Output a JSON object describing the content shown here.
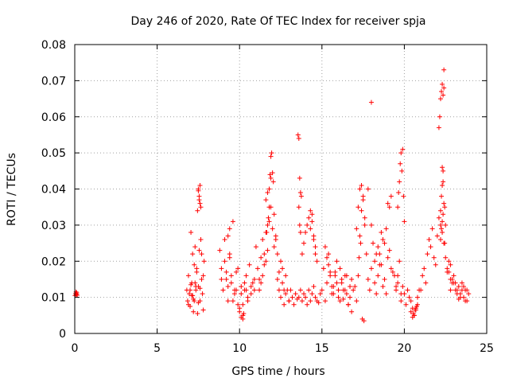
{
  "chart_data": {
    "type": "scatter",
    "title": "Day 246 of 2020, Rate Of TEC Index for receiver spja",
    "xlabel": "GPS time / hours",
    "ylabel": "ROTI / TECUs",
    "xlim": [
      0,
      25
    ],
    "ylim": [
      0,
      0.08
    ],
    "xticks": [
      0,
      5,
      10,
      15,
      20,
      25
    ],
    "yticks": [
      0,
      0.01,
      0.02,
      0.03,
      0.04,
      0.05,
      0.06,
      0.07,
      0.08
    ],
    "xtick_labels": [
      "0",
      "5",
      "10",
      "15",
      "20",
      "25"
    ],
    "ytick_labels": [
      "0",
      "0.01",
      "0.02",
      "0.03",
      "0.04",
      "0.05",
      "0.06",
      "0.07",
      "0.08"
    ],
    "grid": true,
    "marker": "+",
    "marker_color": "#ff0000",
    "series": [
      {
        "x": [
          0.02,
          0.05,
          0.08,
          0.1,
          0.12,
          0.15,
          6.8,
          6.85,
          6.9,
          6.95,
          7.0,
          7.05,
          7.1,
          7.15,
          7.2,
          7.25,
          7.3,
          7.35,
          7.4,
          7.45,
          7.5,
          7.55,
          7.6,
          7.65,
          7.7,
          7.75,
          7.8,
          7.85,
          6.9,
          7.0,
          7.1,
          7.2,
          7.3,
          7.4,
          7.5,
          7.6,
          7.7,
          7.8,
          7.05,
          7.15,
          7.25,
          7.35,
          7.45,
          7.5,
          7.55,
          7.6,
          7.5,
          7.55,
          7.6,
          7.65,
          8.8,
          8.9,
          9.0,
          9.1,
          9.2,
          9.3,
          9.4,
          9.5,
          9.6,
          9.7,
          9.8,
          9.9,
          10.0,
          10.1,
          10.2,
          10.3,
          10.4,
          10.5,
          10.6,
          10.7,
          10.8,
          10.9,
          8.9,
          9.1,
          9.3,
          9.5,
          9.7,
          9.9,
          10.1,
          10.3,
          10.5,
          10.7,
          10.9,
          9.2,
          9.4,
          9.6,
          9.8,
          10.0,
          10.2,
          10.4,
          9.3,
          9.4,
          10.1,
          10.2,
          10.25,
          11.0,
          11.1,
          11.2,
          11.3,
          11.4,
          11.5,
          11.6,
          11.7,
          11.8,
          11.9,
          12.0,
          12.1,
          12.2,
          12.3,
          12.4,
          12.5,
          12.6,
          12.7,
          12.8,
          12.9,
          11.6,
          11.7,
          11.8,
          11.9,
          11.85,
          11.9,
          11.95,
          12.0,
          12.05,
          11.8,
          11.75,
          11.7,
          11.65,
          11.2,
          11.4,
          11.6,
          12.2,
          12.4,
          12.6,
          12.8,
          13.0,
          11.3,
          11.5,
          12.1,
          12.3,
          12.5,
          12.7,
          13.0,
          13.1,
          13.2,
          13.3,
          13.4,
          13.5,
          13.6,
          13.7,
          13.8,
          13.9,
          14.0,
          14.1,
          14.2,
          14.3,
          14.4,
          14.5,
          14.6,
          14.7,
          14.8,
          14.9,
          13.55,
          13.6,
          13.65,
          13.7,
          13.75,
          13.6,
          13.65,
          13.7,
          13.8,
          13.9,
          14.0,
          14.1,
          14.2,
          14.3,
          14.4,
          14.5,
          14.6,
          14.7,
          14.3,
          14.4,
          14.5,
          14.6,
          15.0,
          15.1,
          15.2,
          15.3,
          15.4,
          15.5,
          15.6,
          15.7,
          15.8,
          15.9,
          16.0,
          16.1,
          16.2,
          16.3,
          16.4,
          16.5,
          16.6,
          16.7,
          16.8,
          16.9,
          15.2,
          15.4,
          15.6,
          15.8,
          16.0,
          16.2,
          16.4,
          16.6,
          16.8,
          15.3,
          15.5,
          15.7,
          15.9,
          16.1,
          16.3,
          16.5,
          16.7,
          17.0,
          17.1,
          17.2,
          17.3,
          17.4,
          17.5,
          17.6,
          17.7,
          17.8,
          17.9,
          18.0,
          18.1,
          18.2,
          18.3,
          18.4,
          18.5,
          18.6,
          18.7,
          18.8,
          18.9,
          17.1,
          17.2,
          17.3,
          17.4,
          17.5,
          17.6,
          17.8,
          18.0,
          17.25,
          17.35,
          17.45,
          17.55,
          18.2,
          18.4,
          18.6,
          18.8,
          19.0,
          19.2,
          19.4,
          19.6,
          19.8,
          18.3,
          18.5,
          18.7,
          18.9,
          19.1,
          19.3,
          19.5,
          18.0,
          19.0,
          19.1,
          19.2,
          19.5,
          19.6,
          19.7,
          19.8,
          19.9,
          20.0,
          20.1,
          20.2,
          20.3,
          20.4,
          20.5,
          20.6,
          20.7,
          20.8,
          20.9,
          19.6,
          19.65,
          19.7,
          19.75,
          19.8,
          19.85,
          19.9,
          19.95,
          20.0,
          20.4,
          20.5,
          20.6,
          20.7,
          20.8,
          20.55,
          20.65,
          20.75,
          21.0,
          21.1,
          21.2,
          21.3,
          21.4,
          21.5,
          21.6,
          21.7,
          21.8,
          21.9,
          22.0,
          22.1,
          22.2,
          22.3,
          22.4,
          22.5,
          22.6,
          22.7,
          22.8,
          22.9,
          22.1,
          22.15,
          22.2,
          22.25,
          22.3,
          22.35,
          22.4,
          22.2,
          22.25,
          22.3,
          22.35,
          22.2,
          22.25,
          22.3,
          22.35,
          22.3,
          22.35,
          22.4,
          22.45,
          22.5,
          22.4,
          22.45,
          22.6,
          22.7,
          22.8,
          22.9,
          23.0,
          23.1,
          23.2,
          23.3,
          23.4,
          23.5,
          23.6,
          23.7,
          23.8,
          23.9,
          22.8,
          23.0,
          23.2,
          23.4,
          23.6,
          23.8,
          22.9,
          23.1,
          23.3,
          23.5,
          23.7
        ],
        "y": [
          0.0105,
          0.011,
          0.0115,
          0.0108,
          0.0112,
          0.0106,
          0.012,
          0.009,
          0.016,
          0.011,
          0.0075,
          0.028,
          0.014,
          0.022,
          0.006,
          0.019,
          0.024,
          0.012,
          0.017,
          0.0055,
          0.013,
          0.023,
          0.009,
          0.026,
          0.015,
          0.011,
          0.0065,
          0.02,
          0.008,
          0.012,
          0.0105,
          0.0095,
          0.014,
          0.018,
          0.0085,
          0.0125,
          0.022,
          0.016,
          0.0135,
          0.0105,
          0.009,
          0.013,
          0.034,
          0.04,
          0.038,
          0.036,
          0.0395,
          0.037,
          0.041,
          0.035,
          0.023,
          0.018,
          0.012,
          0.026,
          0.015,
          0.009,
          0.021,
          0.014,
          0.031,
          0.011,
          0.017,
          0.008,
          0.006,
          0.013,
          0.004,
          0.012,
          0.016,
          0.009,
          0.019,
          0.011,
          0.014,
          0.012,
          0.015,
          0.02,
          0.013,
          0.016,
          0.012,
          0.018,
          0.011,
          0.014,
          0.01,
          0.013,
          0.015,
          0.017,
          0.022,
          0.009,
          0.012,
          0.007,
          0.008,
          0.012,
          0.027,
          0.029,
          0.0045,
          0.005,
          0.0055,
          0.024,
          0.018,
          0.015,
          0.021,
          0.026,
          0.019,
          0.028,
          0.023,
          0.031,
          0.035,
          0.029,
          0.033,
          0.027,
          0.022,
          0.017,
          0.02,
          0.014,
          0.012,
          0.016,
          0.012,
          0.037,
          0.039,
          0.04,
          0.043,
          0.044,
          0.049,
          0.05,
          0.0445,
          0.042,
          0.035,
          0.032,
          0.03,
          0.028,
          0.012,
          0.016,
          0.02,
          0.026,
          0.012,
          0.018,
          0.011,
          0.009,
          0.014,
          0.022,
          0.024,
          0.015,
          0.01,
          0.008,
          0.009,
          0.012,
          0.01,
          0.008,
          0.011,
          0.0095,
          0.01,
          0.012,
          0.009,
          0.011,
          0.01,
          0.008,
          0.012,
          0.009,
          0.011,
          0.013,
          0.01,
          0.009,
          0.0085,
          0.011,
          0.055,
          0.054,
          0.043,
          0.039,
          0.038,
          0.035,
          0.03,
          0.028,
          0.022,
          0.025,
          0.028,
          0.03,
          0.032,
          0.034,
          0.031,
          0.027,
          0.024,
          0.02,
          0.029,
          0.033,
          0.026,
          0.022,
          0.012,
          0.018,
          0.009,
          0.014,
          0.022,
          0.017,
          0.011,
          0.013,
          0.016,
          0.02,
          0.012,
          0.018,
          0.014,
          0.0095,
          0.016,
          0.011,
          0.008,
          0.013,
          0.015,
          0.012,
          0.024,
          0.019,
          0.013,
          0.017,
          0.01,
          0.015,
          0.012,
          0.008,
          0.006,
          0.021,
          0.016,
          0.011,
          0.014,
          0.009,
          0.012,
          0.016,
          0.01,
          0.013,
          0.009,
          0.016,
          0.027,
          0.034,
          0.038,
          0.03,
          0.022,
          0.015,
          0.012,
          0.018,
          0.025,
          0.014,
          0.011,
          0.016,
          0.022,
          0.019,
          0.013,
          0.015,
          0.011,
          0.029,
          0.035,
          0.04,
          0.041,
          0.037,
          0.032,
          0.04,
          0.03,
          0.021,
          0.025,
          0.004,
          0.0035,
          0.02,
          0.024,
          0.028,
          0.025,
          0.021,
          0.018,
          0.016,
          0.014,
          0.011,
          0.022,
          0.019,
          0.026,
          0.029,
          0.023,
          0.017,
          0.013,
          0.064,
          0.036,
          0.035,
          0.038,
          0.012,
          0.016,
          0.02,
          0.009,
          0.013,
          0.011,
          0.008,
          0.012,
          0.01,
          0.009,
          0.007,
          0.005,
          0.0065,
          0.01,
          0.012,
          0.035,
          0.039,
          0.042,
          0.047,
          0.05,
          0.045,
          0.051,
          0.038,
          0.031,
          0.006,
          0.0045,
          0.005,
          0.007,
          0.008,
          0.0055,
          0.0065,
          0.0075,
          0.012,
          0.016,
          0.018,
          0.014,
          0.022,
          0.026,
          0.024,
          0.029,
          0.021,
          0.019,
          0.027,
          0.032,
          0.03,
          0.028,
          0.025,
          0.021,
          0.018,
          0.017,
          0.015,
          0.014,
          0.057,
          0.06,
          0.065,
          0.067,
          0.069,
          0.066,
          0.068,
          0.034,
          0.038,
          0.041,
          0.045,
          0.026,
          0.029,
          0.031,
          0.033,
          0.046,
          0.042,
          0.073,
          0.035,
          0.03,
          0.036,
          0.025,
          0.017,
          0.02,
          0.019,
          0.015,
          0.016,
          0.014,
          0.012,
          0.013,
          0.011,
          0.012,
          0.01,
          0.009,
          0.012,
          0.011,
          0.012,
          0.014,
          0.011,
          0.01,
          0.013,
          0.009,
          0.015,
          0.012,
          0.0095,
          0.014,
          0.012
        ]
      }
    ]
  }
}
